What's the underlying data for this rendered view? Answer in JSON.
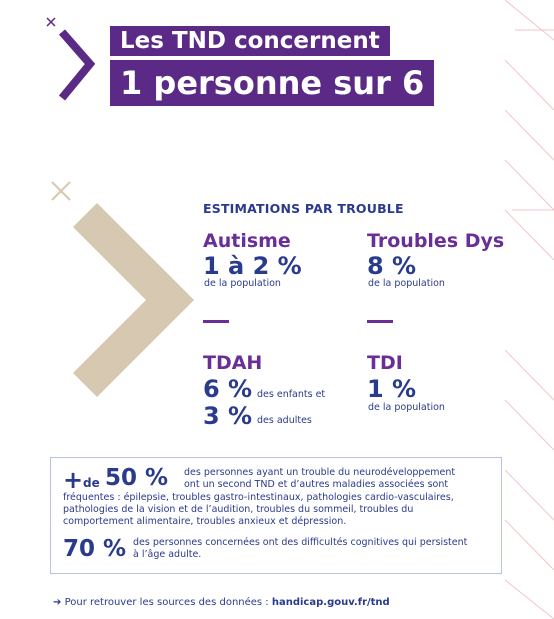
{
  "header": {
    "line1": "Les TND concernent",
    "line2": "1 personne sur 6"
  },
  "section_title": "ESTIMATIONS PAR TROUBLE",
  "troubles": [
    {
      "name": "Autisme",
      "value": "1 à 2 %",
      "note": "de la population"
    },
    {
      "name": "Troubles Dys",
      "value": "8 %",
      "note": "de la population"
    },
    {
      "name": "TDAH",
      "value": "6 %",
      "note": "des enfants et",
      "value2": "3 %",
      "note2": "des adultes"
    },
    {
      "name": "TDI",
      "value": "1 %",
      "note": "de la population"
    }
  ],
  "info": {
    "plus": "+",
    "de": "de",
    "stat1": "50 %",
    "text1_line1": "des personnes ayant un trouble du neurodéveloppement",
    "text1_line2": "ont un second TND et d’autres maladies associées sont",
    "text1_line3": "fréquentes : épilepsie, troubles gastro-intestinaux, pathologies cardio-vasculaires,",
    "text1_line4": "pathologies de la vision et de l’audition, troubles du sommeil, troubles du",
    "text1_line5": "comportement alimentaire, troubles anxieux et dépression.",
    "stat2": "70 %",
    "text2_line1": "des personnes concernées ont des difficultés cognitives qui persistent",
    "text2_line2": "à l’âge adulte."
  },
  "footer": {
    "arrow": "➔",
    "text": "Pour retrouver les sources des données : ",
    "link": "handicap.gouv.fr/tnd"
  },
  "colors": {
    "purple": "#5a2a86",
    "violet": "#6a2f96",
    "navy": "#2a3a8c",
    "beige": "#d7c9b1",
    "pink": "#e8a0a8"
  }
}
